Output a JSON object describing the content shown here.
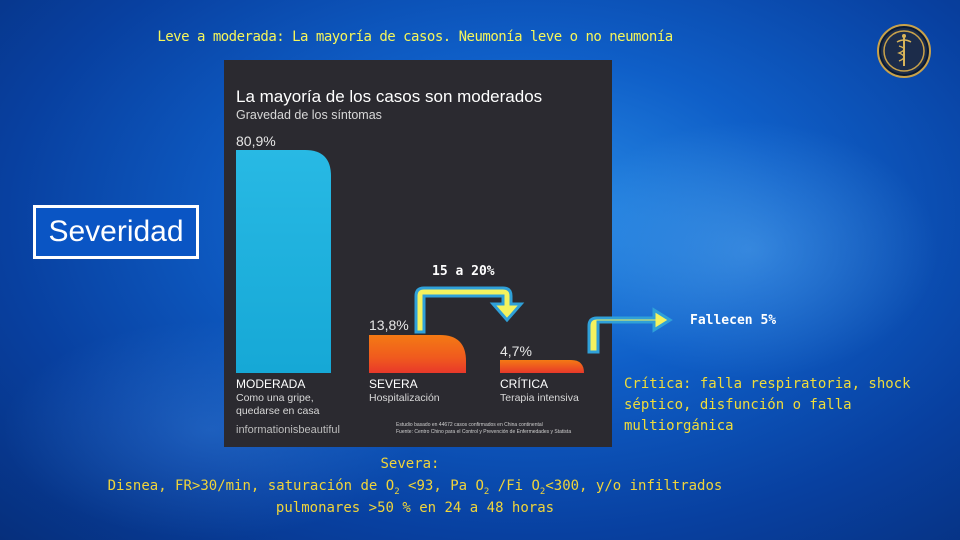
{
  "slide": {
    "top_caption": "Leve a moderada: La mayoría de casos. Neumonía leve o no neumonía",
    "severity_label": "Severidad",
    "arrow_label": "15 a 20%",
    "death_label": "Fallecen 5%",
    "critica_desc_line1": "Crítica: falla respiratoria, shock",
    "critica_desc_line2": "séptico, disfunción o falla multiorgánica",
    "severa_title": "Severa:",
    "severa_line1_a": "Disnea, FR>30/min, saturación de O",
    "severa_line1_sub1": "2",
    "severa_line1_b": " <93, Pa O",
    "severa_line1_sub2": "2",
    "severa_line1_c": " /Fi O",
    "severa_line1_sub3": "2",
    "severa_line1_d": "<300, y/o infiltrados",
    "severa_line2": "pulmonares >50 % en 24 a 48 horas"
  },
  "chart_data": {
    "type": "bar",
    "title": "La mayoría de los casos son moderados",
    "subtitle": "Gravedad de los síntomas",
    "categories": [
      "MODERADA",
      "SEVERA",
      "CRÍTICA"
    ],
    "descriptions": [
      [
        "Como una gripe,",
        "quedarse en casa"
      ],
      [
        "Hospitalización"
      ],
      [
        "Terapia intensiva"
      ]
    ],
    "values": [
      80.9,
      13.8,
      4.7
    ],
    "value_labels": [
      "80,9%",
      "13,8%",
      "4,7%"
    ],
    "units": "%",
    "ylim": [
      0,
      80.9
    ],
    "colors": [
      "#1fb3dd",
      "#f06a1a",
      "#f0621c"
    ],
    "brand": "informationisbeautiful",
    "source_line1": "Estudio basado en 44672 casos confirmados en China continental",
    "source_line2": "Fuente: Centro Chino para el Control y Prevención de Enfermedades y Statista",
    "grid": false,
    "legend": "none"
  }
}
